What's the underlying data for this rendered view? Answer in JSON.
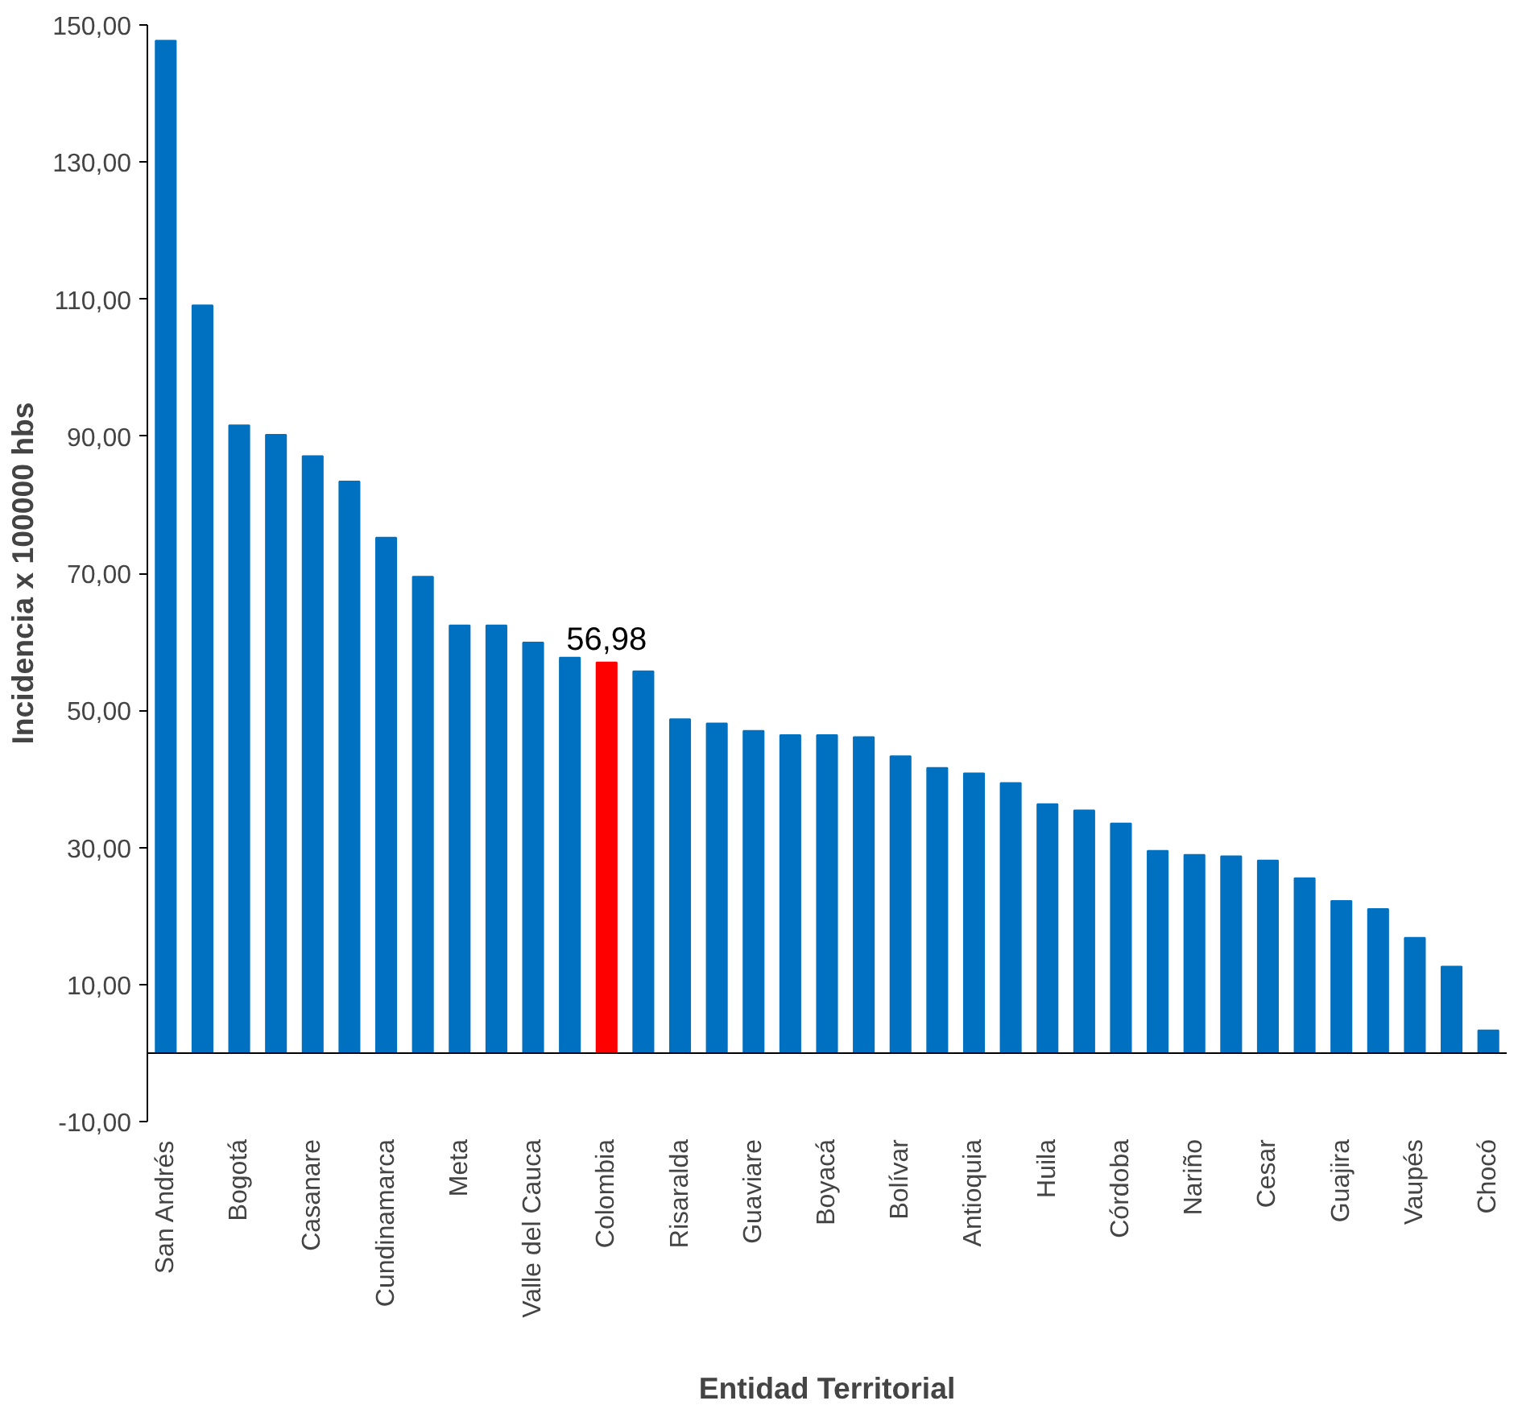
{
  "chart_data": {
    "type": "bar",
    "xlabel": "Entidad Territorial",
    "ylabel": "Incidencia x 100000 hbs",
    "categories": [
      "San Andrés",
      null,
      "Bogotá",
      null,
      "Casanare",
      null,
      "Cundinamarca",
      null,
      "Meta",
      null,
      "Valle del Cauca",
      null,
      "Colombia",
      null,
      "Risaralda",
      null,
      "Guaviare",
      null,
      "Boyacá",
      null,
      "Bolívar",
      null,
      "Antioquia",
      null,
      "Huila",
      null,
      "Córdoba",
      null,
      "Nariño",
      null,
      "Cesar",
      null,
      "Guajira",
      null,
      "Vaupés",
      null,
      "Chocó"
    ],
    "values": [
      147.7,
      109.1,
      91.6,
      90.2,
      87.1,
      83.4,
      75.2,
      69.5,
      62.4,
      62.4,
      59.9,
      57.7,
      56.98,
      55.7,
      48.7,
      48.1,
      47.0,
      46.4,
      46.4,
      46.1,
      43.3,
      41.6,
      40.8,
      39.4,
      36.3,
      35.4,
      33.5,
      29.5,
      28.9,
      28.7,
      28.1,
      25.5,
      22.2,
      21.0,
      16.8,
      12.6,
      3.3
    ],
    "colors": [
      "#0070c0",
      "#0070c0",
      "#0070c0",
      "#0070c0",
      "#0070c0",
      "#0070c0",
      "#0070c0",
      "#0070c0",
      "#0070c0",
      "#0070c0",
      "#0070c0",
      "#0070c0",
      "#ff0000",
      "#0070c0",
      "#0070c0",
      "#0070c0",
      "#0070c0",
      "#0070c0",
      "#0070c0",
      "#0070c0",
      "#0070c0",
      "#0070c0",
      "#0070c0",
      "#0070c0",
      "#0070c0",
      "#0070c0",
      "#0070c0",
      "#0070c0",
      "#0070c0",
      "#0070c0",
      "#0070c0",
      "#0070c0",
      "#0070c0",
      "#0070c0",
      "#0070c0",
      "#0070c0",
      "#0070c0"
    ],
    "value_labels": [
      null,
      null,
      null,
      null,
      null,
      null,
      null,
      null,
      null,
      null,
      null,
      null,
      "56,98",
      null,
      null,
      null,
      null,
      null,
      null,
      null,
      null,
      null,
      null,
      null,
      null,
      null,
      null,
      null,
      null,
      null,
      null,
      null,
      null,
      null,
      null,
      null,
      null
    ],
    "ylim": [
      -10,
      150
    ],
    "yticks": [
      {
        "value": -10,
        "label": "-10,00"
      },
      {
        "value": 10,
        "label": "10,00"
      },
      {
        "value": 30,
        "label": "30,00"
      },
      {
        "value": 50,
        "label": "50,00"
      },
      {
        "value": 70,
        "label": "70,00"
      },
      {
        "value": 90,
        "label": "90,00"
      },
      {
        "value": 110,
        "label": "110,00"
      },
      {
        "value": 130,
        "label": "130,00"
      },
      {
        "value": 150,
        "label": "150,00"
      }
    ],
    "ref_lines": [
      {
        "axis": "y",
        "value": 0,
        "color": "#000000"
      }
    ],
    "grid": false
  }
}
